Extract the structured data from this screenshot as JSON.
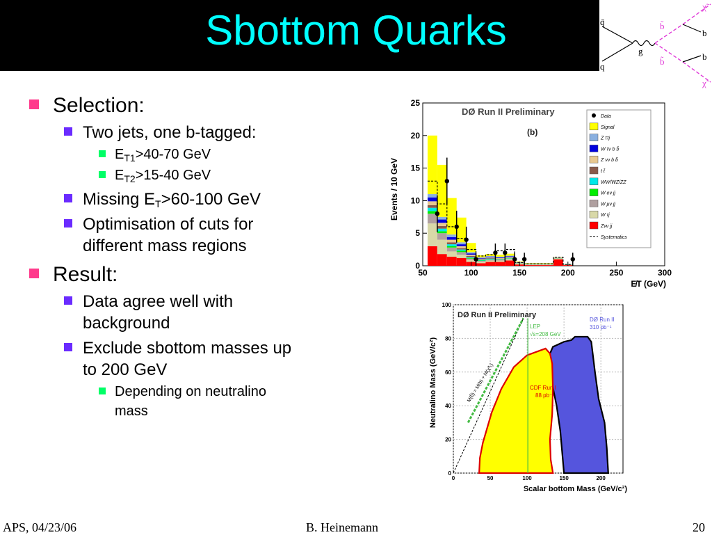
{
  "slide": {
    "title": "Sbottom Quarks",
    "footer_left": "APS, 04/23/06",
    "footer_center": "B. Heinemann",
    "footer_right": "20"
  },
  "bullets": {
    "selection": "Selection:",
    "two_jets": "Two jets, one b-tagged:",
    "et1_e": "E",
    "et1_sub": "T1",
    "et1_rest": ">40-70 GeV",
    "et2_e": "E",
    "et2_sub": "T2",
    "et2_rest": ">15-40 GeV",
    "missing_pre": "Missing E",
    "missing_sub": "T",
    "missing_rest": ">60-100 GeV",
    "optim_1": "Optimisation of cuts for",
    "optim_2": "different mass regions",
    "result": "Result:",
    "data_agree_1": "Data agree well with",
    "data_agree_2": "background",
    "exclude_1": "Exclude sbottom masses up",
    "exclude_2": "to 200 GeV",
    "depending_1": "Depending on neutralino",
    "depending_2": "mass"
  },
  "feynman": {
    "qbar": "q̄",
    "q": "q",
    "g": "g",
    "b_top": "b",
    "b_bottom": "b",
    "sb_top": "b̃",
    "sb_bottom": "b̃",
    "chi_top": "χ̃",
    "chi_bottom": "χ̃",
    "colors": {
      "susy": "#e03ad8",
      "line": "#000000"
    }
  },
  "chart_data": [
    {
      "type": "bar",
      "title": "DØ Run II Preliminary",
      "subtitle": "(b)",
      "xlabel": "E̸T (GeV)",
      "ylabel": "Events / 10 GeV",
      "xlim": [
        50,
        300
      ],
      "ylim": [
        0,
        25
      ],
      "xticks": [
        50,
        100,
        150,
        200,
        250,
        300
      ],
      "yticks": [
        0,
        5,
        10,
        15,
        20,
        25
      ],
      "bin_width": 10,
      "bins": [
        60,
        70,
        80,
        90,
        100,
        110,
        120,
        130,
        140,
        150,
        160,
        170,
        180,
        190,
        200
      ],
      "series": [
        {
          "name": "Zνν jj",
          "color": "#ff0000",
          "values": [
            3,
            1.8,
            1.4,
            1.2,
            0.6,
            0.4,
            0.6,
            0.6,
            0.8,
            0.2,
            0.1,
            0.1,
            0.1,
            1.0,
            0.1
          ]
        },
        {
          "name": "W τj",
          "color": "#d8d8a8",
          "values": [
            3.5,
            2.2,
            0.8,
            0.5,
            0.3,
            0.2,
            0.2,
            0.2,
            0.2,
            0.1,
            0.1,
            0.1,
            0.1,
            0.1,
            0.05
          ]
        },
        {
          "name": "W μν jj",
          "color": "#b0a0a0",
          "values": [
            1.5,
            1.0,
            0.6,
            0.4,
            0.2,
            0.15,
            0.15,
            0.15,
            0.1,
            0.05,
            0.05,
            0.05,
            0.05,
            0.05,
            0.02
          ]
        },
        {
          "name": "W eν jj",
          "color": "#00ee00",
          "values": [
            0.4,
            0.3,
            0.2,
            0.2,
            0.1,
            0.05,
            0.05,
            0.05,
            0.05,
            0.02,
            0.02,
            0.02,
            0.02,
            0.02,
            0.01
          ]
        },
        {
          "name": "WW/WZ/ZZ",
          "color": "#00e8e8",
          "values": [
            0.5,
            0.4,
            0.3,
            0.2,
            0.1,
            0.1,
            0.1,
            0.05,
            0.05,
            0.02,
            0.02,
            0.02,
            0.02,
            0.02,
            0.01
          ]
        },
        {
          "name": "t t̄",
          "color": "#8a5a4a",
          "values": [
            0.4,
            0.4,
            0.3,
            0.2,
            0.2,
            0.1,
            0.1,
            0.05,
            0.05,
            0.02,
            0.02,
            0.02,
            0.02,
            0.02,
            0.01
          ]
        },
        {
          "name": "Z νν b b̄",
          "color": "#e8c890",
          "values": [
            0.6,
            0.5,
            0.4,
            0.3,
            0.2,
            0.1,
            0.1,
            0.1,
            0.1,
            0.05,
            0.02,
            0.02,
            0.02,
            0.02,
            0.01
          ]
        },
        {
          "name": "W τν b b̄",
          "color": "#0000dd",
          "values": [
            0.6,
            0.5,
            0.4,
            0.3,
            0.2,
            0.1,
            0.1,
            0.1,
            0.1,
            0.05,
            0.02,
            0.02,
            0.02,
            0.02,
            0.01
          ]
        },
        {
          "name": "Z ττj",
          "color": "#8ab0e0",
          "values": [
            0.5,
            0.4,
            0.4,
            0.3,
            0.2,
            0.1,
            0.1,
            0.1,
            0.1,
            0.05,
            0.02,
            0.02,
            0.02,
            0.02,
            0.01
          ]
        },
        {
          "name": "Signal",
          "color": "#ffff00",
          "values": [
            9,
            8,
            5.6,
            3.8,
            1.4,
            0.3,
            0.3,
            0.3,
            0.3,
            0.1,
            0.05,
            0.05,
            0.05,
            0.05,
            0.02
          ]
        }
      ],
      "systematics": {
        "name": "Systematics",
        "values": [
          13,
          9.5,
          6,
          4.2,
          2.5,
          1.5,
          1.7,
          2.3,
          2.5,
          0.5,
          0.3,
          0.3,
          0.3,
          1.3,
          0.2
        ]
      },
      "data": {
        "name": "Data",
        "x": [
          65,
          75,
          85,
          95,
          105,
          125,
          135,
          145,
          155,
          205
        ],
        "y": [
          8,
          13,
          6,
          4,
          1,
          2,
          2,
          1,
          1,
          1
        ]
      }
    },
    {
      "type": "area",
      "title": "DØ Run II Preliminary",
      "xlabel": "Scalar bottom Mass (GeV/c²)",
      "ylabel": "Neutralino Mass (GeV/c²)",
      "xlim": [
        0,
        230
      ],
      "ylim": [
        0,
        100
      ],
      "xticks": [
        0,
        50,
        100,
        150,
        200
      ],
      "yticks": [
        0,
        20,
        40,
        60,
        80,
        100
      ],
      "diagonal_label": "M(b̃) = M(b) + M(χ̃⁰₁)",
      "regions": [
        {
          "name": "DØ Run II 310 pb⁻¹",
          "label_1": "DØ Run II",
          "label_2": "310 pb⁻¹",
          "color": "#5555dd",
          "points": [
            [
              150,
              0
            ],
            [
              148,
              10
            ],
            [
              145,
              25
            ],
            [
              140,
              40
            ],
            [
              133,
              55
            ],
            [
              128,
              68
            ],
            [
              135,
              75
            ],
            [
              140,
              76
            ],
            [
              150,
              78
            ],
            [
              160,
              79
            ],
            [
              165,
              81
            ],
            [
              182,
              81
            ],
            [
              187,
              78
            ],
            [
              192,
              60
            ],
            [
              197,
              44
            ],
            [
              205,
              30
            ],
            [
              208,
              15
            ],
            [
              210,
              0
            ]
          ]
        },
        {
          "name": "CDF Run I 88 pb⁻¹",
          "label_1": "CDF Run I",
          "label_2": "88 pb⁻¹",
          "color": "#ffff00",
          "edge": "#dd0000",
          "points": [
            [
              35,
              0
            ],
            [
              36,
              9
            ],
            [
              40,
              18
            ],
            [
              52,
              36
            ],
            [
              65,
              50
            ],
            [
              82,
              63
            ],
            [
              100,
              70
            ],
            [
              125,
              74
            ],
            [
              131,
              71
            ],
            [
              134,
              65
            ],
            [
              135,
              50
            ],
            [
              134,
              35
            ],
            [
              131,
              20
            ],
            [
              132,
              8
            ],
            [
              135,
              0
            ]
          ]
        }
      ],
      "lep_label_1": "LEP",
      "lep_label_2": "√s=208 GeV",
      "lep_color": "#44bb44",
      "lep_vline_x": 101,
      "diagonal_color": "#000000"
    }
  ]
}
